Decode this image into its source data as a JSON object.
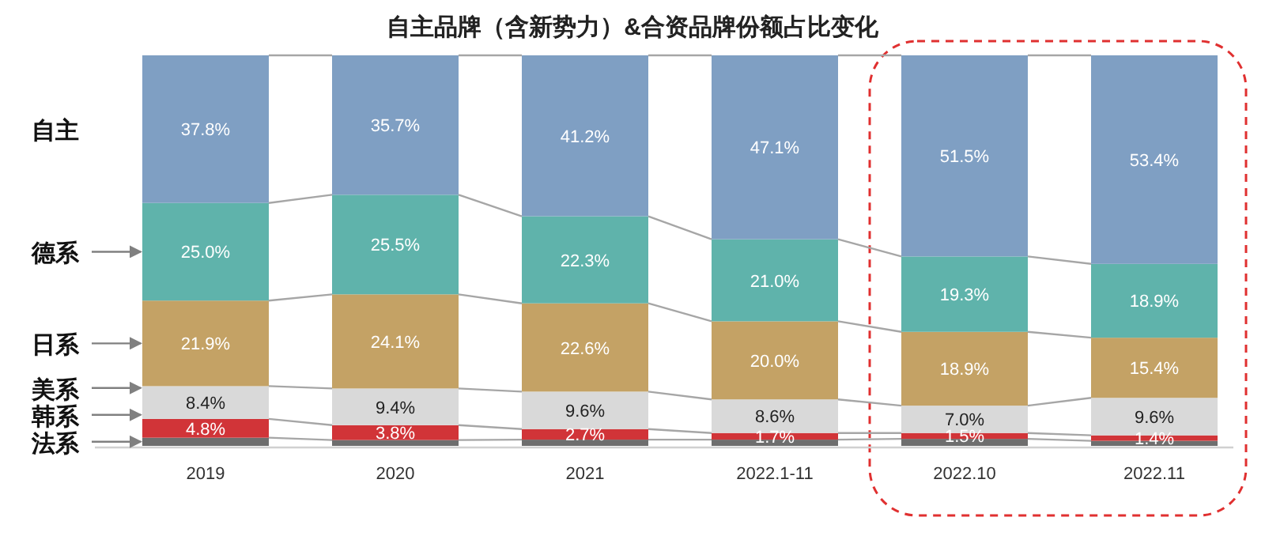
{
  "chart_data": {
    "type": "bar",
    "stacked": true,
    "title": "自主品牌（含新势力）&合资品牌份额占比变化",
    "categories": [
      "2019",
      "2020",
      "2021",
      "2022.1-11",
      "2022.10",
      "2022.11"
    ],
    "ylim": [
      0,
      100
    ],
    "tick_labels": "x",
    "series": [
      {
        "name": "法系",
        "color": "#6e6e6e",
        "values": [
          2.1,
          1.5,
          1.6,
          1.6,
          1.8,
          1.3
        ],
        "value_labels": [
          null,
          null,
          null,
          null,
          null,
          null
        ]
      },
      {
        "name": "韩系",
        "color": "#d13438",
        "values": [
          4.8,
          3.8,
          2.7,
          1.7,
          1.5,
          1.4
        ],
        "value_labels": [
          "4.8%",
          "3.8%",
          "2.7%",
          "1.7%",
          "1.5%",
          "1.4%"
        ]
      },
      {
        "name": "美系",
        "color": "#d9d9d9",
        "values": [
          8.4,
          9.4,
          9.6,
          8.6,
          7.0,
          9.6
        ],
        "value_labels": [
          "8.4%",
          "9.4%",
          "9.6%",
          "8.6%",
          "7.0%",
          "9.6%"
        ]
      },
      {
        "name": "日系",
        "color": "#c4a265",
        "values": [
          21.9,
          24.1,
          22.6,
          20.0,
          18.9,
          15.4
        ],
        "value_labels": [
          "21.9%",
          "24.1%",
          "22.6%",
          "20.0%",
          "18.9%",
          "15.4%"
        ]
      },
      {
        "name": "德系",
        "color": "#5fb3ab",
        "values": [
          25.0,
          25.5,
          22.3,
          21.0,
          19.3,
          18.9
        ],
        "value_labels": [
          "25.0%",
          "25.5%",
          "22.3%",
          "21.0%",
          "19.3%",
          "18.9%"
        ]
      },
      {
        "name": "自主",
        "color": "#7f9fc3",
        "values": [
          37.8,
          35.7,
          41.2,
          47.1,
          51.5,
          53.4
        ],
        "value_labels": [
          "37.8%",
          "35.7%",
          "41.2%",
          "47.1%",
          "51.5%",
          "53.4%"
        ]
      }
    ]
  }
}
